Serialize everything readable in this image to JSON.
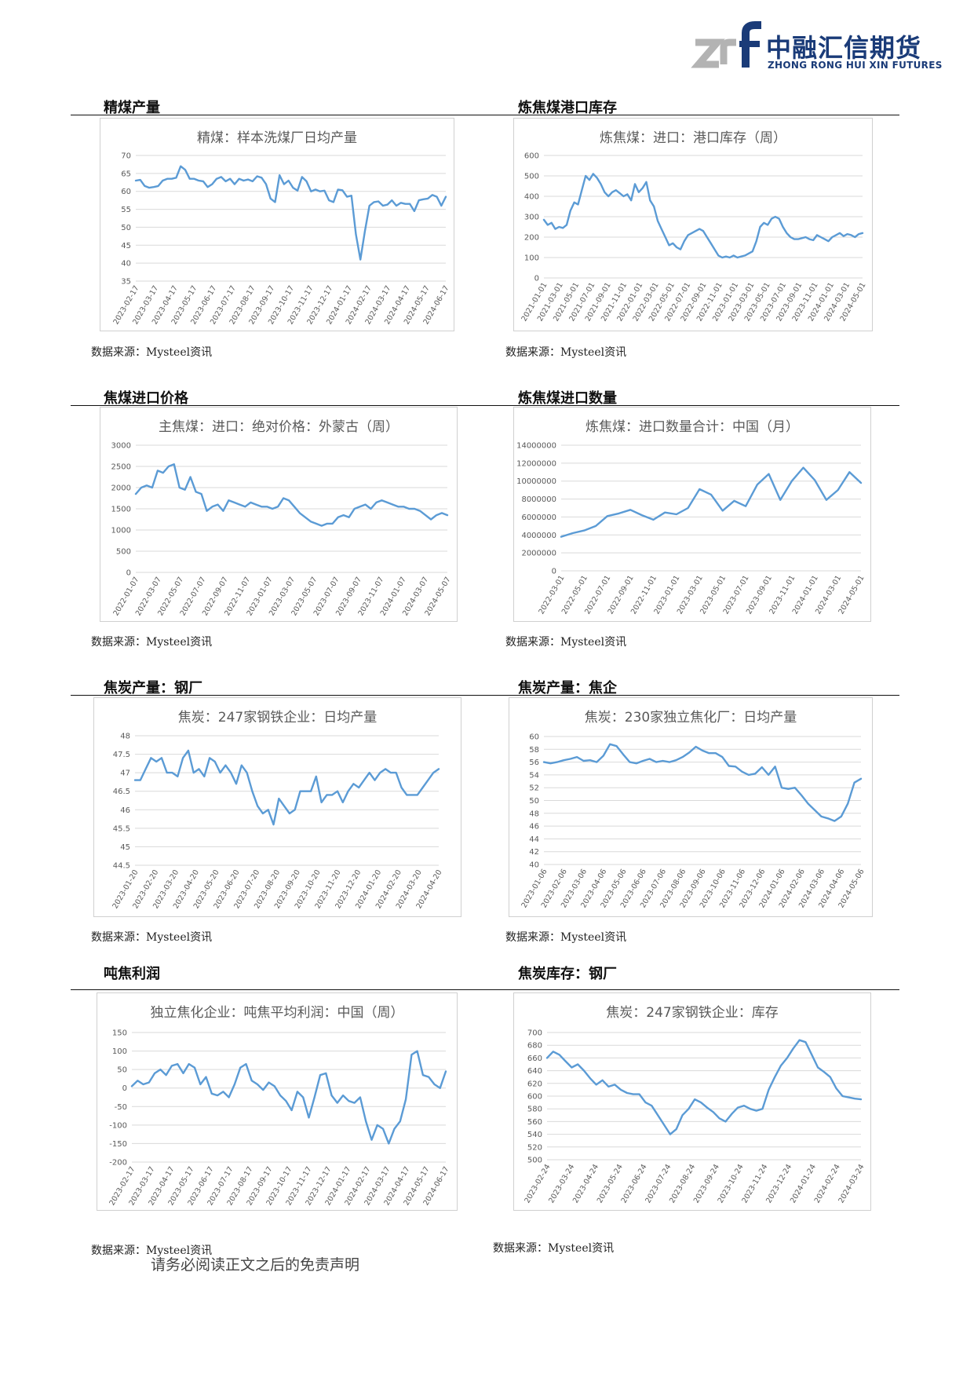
{
  "logo": {
    "cn": "中融汇信期货",
    "en": "ZHONG RONG HUI XIN FUTURES"
  },
  "colors": {
    "line": "#5b9bd5",
    "grid": "#d9d9d9",
    "axis_text": "#595959",
    "brand": "#1a3b78"
  },
  "sections": [
    {
      "title": "精煤产量",
      "source": "数据来源：Mysteel资讯"
    },
    {
      "title": "炼焦煤港口库存",
      "source": "数据来源：Mysteel资讯"
    },
    {
      "title": "焦煤进口价格",
      "source": "数据来源：Mysteel资讯"
    },
    {
      "title": "炼焦煤进口数量",
      "source": "数据来源：Mysteel资讯"
    },
    {
      "title": "焦炭产量：钢厂",
      "source": "数据来源：Mysteel资讯"
    },
    {
      "title": "焦炭产量：焦企",
      "source": "数据来源：Mysteel资讯"
    },
    {
      "title": "吨焦利润",
      "source": "数据来源：Mysteel资讯"
    },
    {
      "title": "焦炭库存：钢厂",
      "source": "数据来源：Mysteel资讯"
    }
  ],
  "footer": "请务必阅读正文之后的免责声明",
  "chart_data": [
    {
      "type": "line",
      "title": "精煤：样本洗煤厂日均产量",
      "yticks": [
        "70",
        "65",
        "60",
        "55",
        "50",
        "45",
        "40",
        "35"
      ],
      "ylim": [
        35,
        70
      ],
      "xticks": [
        "2023-02-17",
        "2023-03-17",
        "2023-04-17",
        "2023-05-17",
        "2023-06-17",
        "2023-07-17",
        "2023-08-17",
        "2023-09-17",
        "2023-10-17",
        "2023-11-17",
        "2023-12-17",
        "2024-01-17",
        "2024-02-17",
        "2024-03-17",
        "2024-04-17",
        "2024-05-17",
        "2024-06-17"
      ],
      "series": [
        {
          "values": [
            63,
            63.2,
            61.5,
            61,
            61.2,
            61.5,
            63,
            63.5,
            63.5,
            63.8,
            67,
            66,
            63.5,
            63.5,
            63,
            62.8,
            61.2,
            62,
            63.5,
            64,
            62.8,
            63.5,
            62,
            63.5,
            63,
            63.3,
            62.8,
            64.2,
            63.8,
            62,
            58,
            57,
            64.5,
            62,
            63,
            61,
            60.2,
            64,
            62.8,
            60,
            60.5,
            60,
            60.2,
            57.5,
            57,
            60.5,
            60.3,
            58.5,
            58.8,
            48,
            41,
            49,
            56,
            57,
            57.2,
            56,
            56.3,
            57.5,
            56,
            56.8,
            56.5,
            56.5,
            54.5,
            57.5,
            57.8,
            58,
            59,
            58.5,
            56,
            58.5
          ]
        }
      ]
    },
    {
      "type": "line",
      "title": "炼焦煤：进口：港口库存（周）",
      "yticks": [
        "600",
        "500",
        "400",
        "300",
        "200",
        "100",
        "0"
      ],
      "ylim": [
        0,
        600
      ],
      "xticks": [
        "2021-01-01",
        "2021-03-01",
        "2021-05-01",
        "2021-07-01",
        "2021-09-01",
        "2021-11-01",
        "2022-01-01",
        "2022-03-01",
        "2022-05-01",
        "2022-07-01",
        "2022-09-01",
        "2022-11-01",
        "2023-01-01",
        "2023-03-01",
        "2023-05-01",
        "2023-07-01",
        "2023-09-01",
        "2023-11-01",
        "2024-01-01",
        "2024-03-01",
        "2024-05-01"
      ],
      "series": [
        {
          "values": [
            285,
            260,
            270,
            240,
            250,
            245,
            260,
            330,
            370,
            360,
            430,
            500,
            480,
            510,
            490,
            460,
            420,
            400,
            420,
            430,
            415,
            400,
            410,
            380,
            460,
            420,
            440,
            470,
            380,
            350,
            280,
            240,
            200,
            160,
            170,
            150,
            140,
            180,
            210,
            220,
            230,
            240,
            230,
            200,
            170,
            140,
            110,
            100,
            105,
            100,
            110,
            100,
            105,
            110,
            120,
            130,
            180,
            250,
            270,
            260,
            290,
            300,
            290,
            250,
            220,
            200,
            190,
            190,
            195,
            200,
            190,
            185,
            210,
            200,
            190,
            180,
            200,
            210,
            220,
            205,
            215,
            210,
            200,
            215,
            220
          ]
        }
      ]
    },
    {
      "type": "line",
      "title": "主焦煤：进口：绝对价格：外蒙古（周）",
      "yticks": [
        "3000",
        "2500",
        "2000",
        "1500",
        "1000",
        "500",
        "0"
      ],
      "ylim": [
        0,
        3000
      ],
      "xticks": [
        "2022-01-07",
        "2022-03-07",
        "2022-05-07",
        "2022-07-07",
        "2022-09-07",
        "2022-11-07",
        "2023-01-07",
        "2023-03-07",
        "2023-05-07",
        "2023-07-07",
        "2023-09-07",
        "2023-11-07",
        "2024-01-07",
        "2024-03-07",
        "2024-05-07"
      ],
      "series": [
        {
          "values": [
            1850,
            2000,
            2050,
            2000,
            2400,
            2350,
            2500,
            2550,
            2000,
            1950,
            2250,
            1900,
            1850,
            1450,
            1550,
            1600,
            1450,
            1700,
            1650,
            1600,
            1550,
            1650,
            1600,
            1550,
            1550,
            1500,
            1550,
            1750,
            1700,
            1550,
            1400,
            1300,
            1200,
            1150,
            1100,
            1150,
            1150,
            1300,
            1350,
            1300,
            1500,
            1550,
            1600,
            1500,
            1650,
            1700,
            1650,
            1600,
            1550,
            1550,
            1500,
            1500,
            1450,
            1350,
            1250,
            1350,
            1400,
            1350
          ]
        }
      ]
    },
    {
      "type": "line",
      "title": "炼焦煤：进口数量合计：中国（月）",
      "yticks": [
        "14000000",
        "12000000",
        "10000000",
        "8000000",
        "6000000",
        "4000000",
        "2000000",
        "0"
      ],
      "ylim": [
        0,
        14000000
      ],
      "xticks": [
        "2022-03-01",
        "2022-05-01",
        "2022-07-01",
        "2022-09-01",
        "2022-11-01",
        "2023-01-01",
        "2023-03-01",
        "2023-05-01",
        "2023-07-01",
        "2023-09-01",
        "2023-11-01",
        "2024-01-01",
        "2024-03-01",
        "2024-05-01"
      ],
      "series": [
        {
          "values": [
            3800000,
            4200000,
            4500000,
            5000000,
            6100000,
            6400000,
            6800000,
            6200000,
            5700000,
            6500000,
            6300000,
            7000000,
            9100000,
            8500000,
            6700000,
            7800000,
            7200000,
            9600000,
            10800000,
            7900000,
            10000000,
            11500000,
            10100000,
            7900000,
            9000000,
            11000000,
            9800000
          ]
        }
      ]
    },
    {
      "type": "line",
      "title": "焦炭：247家钢铁企业：日均产量",
      "yticks": [
        "48",
        "47.5",
        "47",
        "46.5",
        "46",
        "45.5",
        "45",
        "44.5"
      ],
      "ylim": [
        44.5,
        48
      ],
      "xticks": [
        "2023-01-20",
        "2023-02-20",
        "2023-03-20",
        "2023-04-20",
        "2023-05-20",
        "2023-06-20",
        "2023-07-20",
        "2023-08-20",
        "2023-09-20",
        "2023-10-20",
        "2023-11-20",
        "2023-12-20",
        "2024-01-20",
        "2024-02-20",
        "2024-03-20",
        "2024-04-20"
      ],
      "series": [
        {
          "values": [
            46.8,
            46.8,
            47.1,
            47.4,
            47.3,
            47.4,
            47.0,
            47.0,
            46.9,
            47.4,
            47.6,
            47.0,
            47.1,
            46.9,
            47.4,
            47.3,
            47.0,
            47.2,
            47.0,
            46.7,
            47.2,
            47.0,
            46.5,
            46.1,
            45.9,
            46.0,
            45.6,
            46.3,
            46.1,
            45.9,
            46.0,
            46.5,
            46.5,
            46.5,
            46.9,
            46.2,
            46.4,
            46.4,
            46.5,
            46.2,
            46.5,
            46.7,
            46.6,
            46.8,
            47.0,
            46.8,
            47.0,
            47.1,
            47.0,
            47.0,
            46.6,
            46.4,
            46.4,
            46.4,
            46.6,
            46.8,
            47.0,
            47.1
          ]
        }
      ]
    },
    {
      "type": "line",
      "title": "焦炭：230家独立焦化厂：日均产量",
      "yticks": [
        "60",
        "58",
        "56",
        "54",
        "52",
        "50",
        "48",
        "46",
        "44",
        "42",
        "40"
      ],
      "ylim": [
        40,
        60
      ],
      "xticks": [
        "2023-01-06",
        "2023-02-06",
        "2023-03-06",
        "2023-04-06",
        "2023-05-06",
        "2023-06-06",
        "2023-07-06",
        "2023-08-06",
        "2023-09-06",
        "2023-10-06",
        "2023-11-06",
        "2023-12-06",
        "2024-01-06",
        "2024-02-06",
        "2024-03-06",
        "2024-04-06",
        "2024-05-06"
      ],
      "series": [
        {
          "values": [
            56,
            55.8,
            56,
            56.3,
            56.5,
            56.8,
            56.2,
            56.3,
            56,
            57,
            58.8,
            58.5,
            57.2,
            56,
            55.8,
            56.2,
            56.5,
            56,
            56.2,
            56,
            56.3,
            56.8,
            57.5,
            58.4,
            57.8,
            57.4,
            57.4,
            56.8,
            55.4,
            55.3,
            54.5,
            54,
            54.2,
            55.2,
            54,
            55.3,
            52,
            51.8,
            52,
            50.8,
            49.5,
            48.5,
            47.5,
            47.2,
            46.8,
            47.5,
            49.5,
            52.8,
            53.4
          ]
        }
      ]
    },
    {
      "type": "line",
      "title": "独立焦化企业：吨焦平均利润：中国（周）",
      "yticks": [
        "150",
        "100",
        "50",
        "0",
        "-50",
        "-100",
        "-150",
        "-200"
      ],
      "ylim": [
        -200,
        150
      ],
      "xticks": [
        "2023-02-17",
        "2023-03-17",
        "2023-04-17",
        "2023-05-17",
        "2023-06-17",
        "2023-07-17",
        "2023-08-17",
        "2023-09-17",
        "2023-10-17",
        "2023-11-17",
        "2023-12-17",
        "2024-01-17",
        "2024-02-17",
        "2024-03-17",
        "2024-04-17",
        "2024-05-17",
        "2024-06-17"
      ],
      "series": [
        {
          "values": [
            5,
            20,
            10,
            15,
            40,
            50,
            35,
            60,
            65,
            40,
            65,
            55,
            10,
            30,
            -15,
            -20,
            -10,
            -25,
            10,
            55,
            65,
            20,
            10,
            -5,
            15,
            5,
            -20,
            -35,
            -60,
            -10,
            -25,
            -80,
            -25,
            35,
            40,
            -20,
            -40,
            -20,
            -35,
            -40,
            -25,
            -90,
            -140,
            -100,
            -110,
            -150,
            -110,
            -90,
            -30,
            90,
            100,
            35,
            30,
            10,
            0,
            45
          ]
        }
      ]
    },
    {
      "type": "line",
      "title": "焦炭：247家钢铁企业：库存",
      "yticks": [
        "700",
        "680",
        "660",
        "640",
        "620",
        "600",
        "580",
        "560",
        "540",
        "520",
        "500"
      ],
      "ylim": [
        500,
        700
      ],
      "xticks": [
        "2023-02-24",
        "2023-03-24",
        "2023-04-24",
        "2023-05-24",
        "2023-06-24",
        "2023-07-24",
        "2023-08-24",
        "2023-09-24",
        "2023-10-24",
        "2023-11-24",
        "2023-12-24",
        "2024-01-24",
        "2024-02-24",
        "2024-03-24"
      ],
      "series": [
        {
          "values": [
            660,
            670,
            665,
            655,
            645,
            650,
            640,
            628,
            618,
            625,
            615,
            618,
            610,
            605,
            603,
            603,
            590,
            585,
            570,
            555,
            540,
            548,
            570,
            580,
            595,
            590,
            582,
            575,
            565,
            560,
            572,
            582,
            585,
            580,
            577,
            580,
            610,
            630,
            648,
            660,
            675,
            688,
            685,
            665,
            645,
            638,
            630,
            612,
            600,
            598,
            596,
            595
          ]
        }
      ]
    }
  ]
}
